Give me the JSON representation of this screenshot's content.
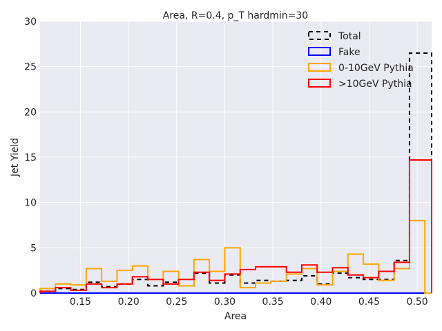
{
  "chart_data": {
    "type": "line",
    "style": "step-histogram",
    "title": "Area, R=0.4, p_T hardmin=30",
    "xlabel": "Area",
    "ylabel": "Jet Yield",
    "xlim": [
      0.108,
      0.515
    ],
    "ylim": [
      0,
      30
    ],
    "xticks": [
      0.15,
      0.2,
      0.25,
      0.3,
      0.35,
      0.4,
      0.45,
      0.5
    ],
    "xtick_labels": [
      "0.15",
      "0.20",
      "0.25",
      "0.30",
      "0.35",
      "0.40",
      "0.45",
      "0.50"
    ],
    "yticks": [
      0,
      5,
      10,
      15,
      20,
      25,
      30
    ],
    "ytick_labels": [
      "0",
      "5",
      "10",
      "15",
      "20",
      "25",
      "30"
    ],
    "grid": true,
    "legend_position": "top-right",
    "bin_edges": [
      0.108,
      0.124,
      0.14,
      0.156,
      0.172,
      0.188,
      0.204,
      0.22,
      0.236,
      0.252,
      0.268,
      0.284,
      0.3,
      0.316,
      0.332,
      0.348,
      0.364,
      0.38,
      0.396,
      0.412,
      0.428,
      0.444,
      0.46,
      0.476,
      0.492,
      0.508,
      0.515
    ],
    "series": [
      {
        "name": "Total",
        "color": "#000000",
        "dash": "dashed",
        "values": [
          0.2,
          0.5,
          0.4,
          1.2,
          0.7,
          1.0,
          1.5,
          0.8,
          1.2,
          0.8,
          2.2,
          1.1,
          2.0,
          1.1,
          1.4,
          1.3,
          1.4,
          1.9,
          1.0,
          2.2,
          1.7,
          1.5,
          1.5,
          3.6,
          26.5,
          26.5
        ]
      },
      {
        "name": "Fake",
        "color": "#0000ff",
        "dash": "solid",
        "values": [
          0,
          0,
          0,
          0,
          0,
          0,
          0,
          0,
          0,
          0,
          0,
          0,
          0,
          0,
          0,
          0,
          0,
          0,
          0,
          0,
          0,
          0,
          0,
          0,
          0,
          0
        ]
      },
      {
        "name": "0-10GeV Pythia",
        "color": "#ffa500",
        "dash": "solid",
        "values": [
          0.5,
          1.0,
          0.9,
          2.7,
          1.3,
          2.5,
          3.0,
          1.5,
          2.4,
          0.8,
          3.7,
          2.4,
          5.0,
          0.6,
          1.1,
          1.3,
          2.1,
          2.7,
          0.9,
          2.4,
          4.3,
          3.2,
          1.4,
          2.7,
          8.0,
          0.0
        ]
      },
      {
        "name": ">10GeV Pythia",
        "color": "#ff0000",
        "dash": "solid",
        "values": [
          0.2,
          0.6,
          0.3,
          1.0,
          0.6,
          1.0,
          1.8,
          1.5,
          1.0,
          1.5,
          2.3,
          1.4,
          2.1,
          2.6,
          2.9,
          2.9,
          2.3,
          3.1,
          2.3,
          2.8,
          2.0,
          1.7,
          2.4,
          3.4,
          14.7,
          14.7
        ]
      }
    ]
  }
}
